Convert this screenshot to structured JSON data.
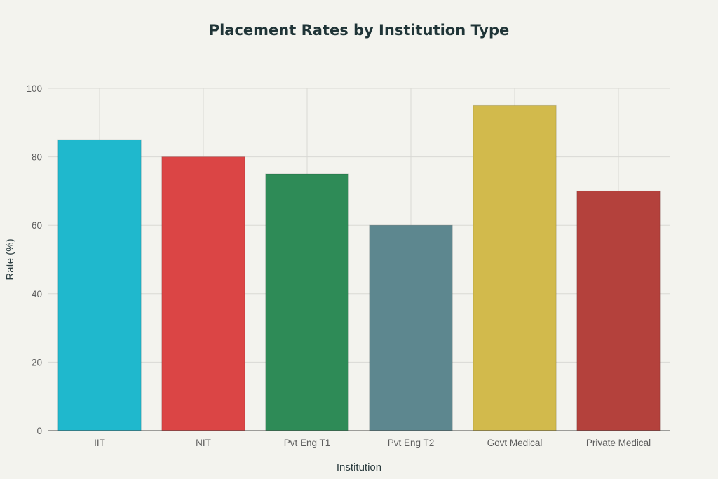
{
  "chart_data": {
    "type": "bar",
    "title": "Placement Rates by Institution Type",
    "xlabel": "Institution",
    "ylabel": "Rate (%)",
    "ylim": [
      0,
      100
    ],
    "yticks": [
      0,
      20,
      40,
      60,
      80,
      100
    ],
    "grid": true,
    "categories": [
      "IIT",
      "NIT",
      "Pvt Eng T1",
      "Pvt Eng T2",
      "Govt Medical",
      "Private Medical"
    ],
    "values": [
      85,
      80,
      75,
      60,
      95,
      70
    ],
    "colors": [
      "#1fb8cd",
      "#db4545",
      "#2e8b57",
      "#5d878f",
      "#d2ba4c",
      "#b4413c"
    ]
  }
}
